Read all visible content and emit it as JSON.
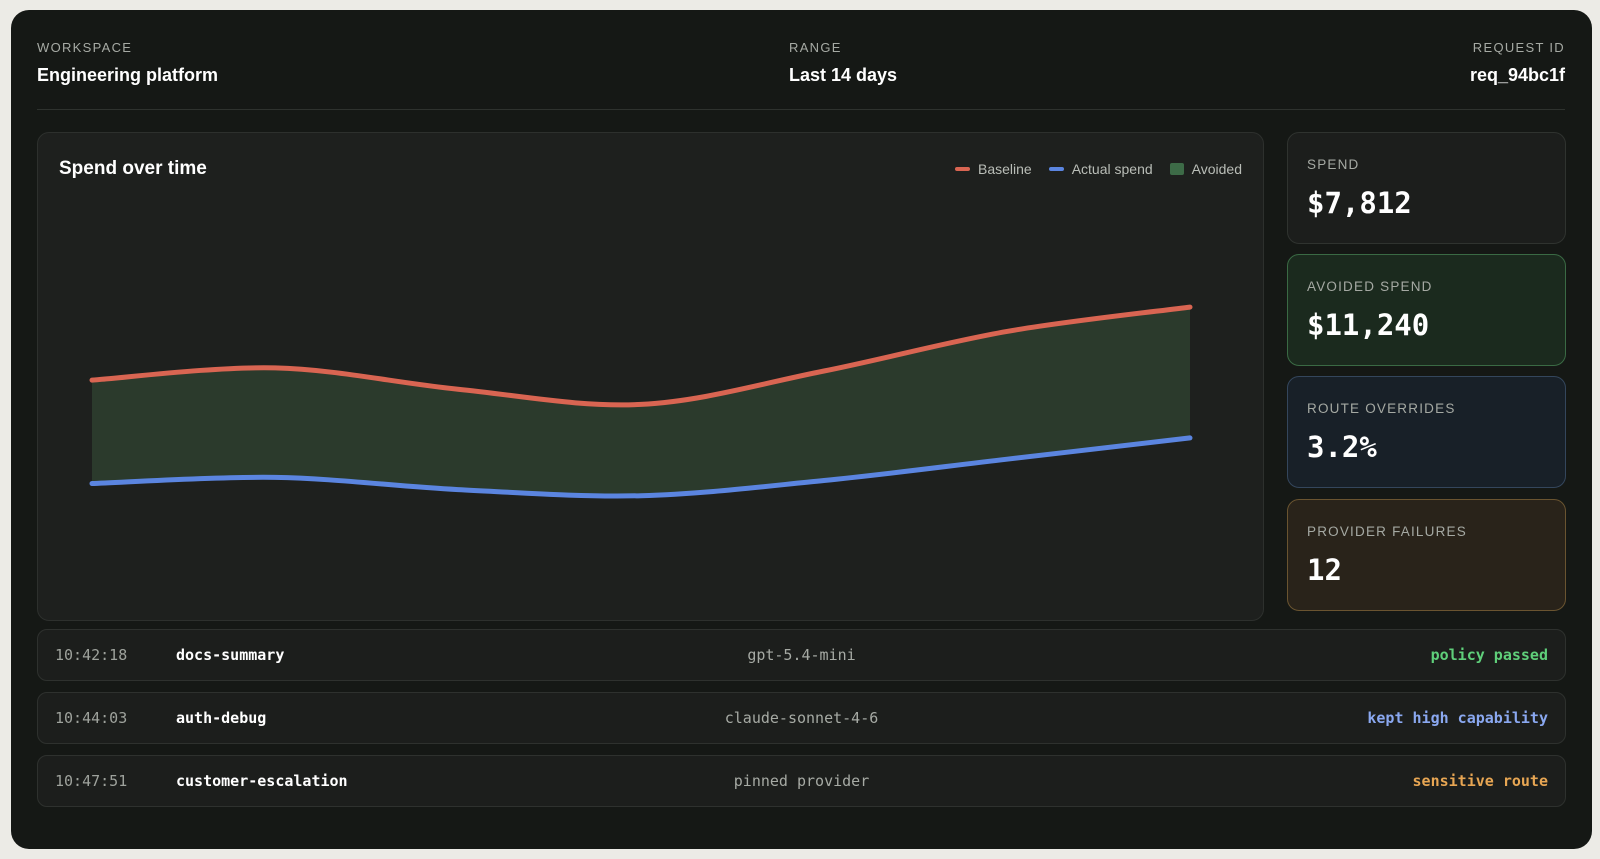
{
  "header": {
    "workspace_label": "WORKSPACE",
    "workspace_value": "Engineering platform",
    "range_label": "RANGE",
    "range_value": "Last 14 days",
    "request_label": "REQUEST ID",
    "request_value": "req_94bc1f"
  },
  "chart": {
    "title": "Spend over time",
    "legend": {
      "baseline": "Baseline",
      "actual": "Actual spend",
      "avoided": "Avoided"
    },
    "colors": {
      "baseline": "#d96552",
      "actual": "#5b85e0",
      "avoided": "#2b3a2c"
    }
  },
  "chart_data": {
    "type": "line",
    "title": "Spend over time",
    "xlabel": "",
    "ylabel": "",
    "grid": false,
    "legend_position": "top-right",
    "x": [
      0,
      1,
      2,
      3,
      4,
      5,
      6
    ],
    "series": [
      {
        "name": "Baseline",
        "values": [
          0.7,
          0.74,
          0.67,
          0.62,
          0.73,
          0.86,
          0.94
        ]
      },
      {
        "name": "Actual spend",
        "values": [
          0.36,
          0.38,
          0.34,
          0.32,
          0.37,
          0.44,
          0.51
        ]
      }
    ],
    "ylim": [
      0,
      1.2
    ]
  },
  "stats": [
    {
      "label": "SPEND",
      "value": "$7,812"
    },
    {
      "label": "AVOIDED SPEND",
      "value": "$11,240"
    },
    {
      "label": "ROUTE OVERRIDES",
      "value": "3.2%"
    },
    {
      "label": "PROVIDER FAILURES",
      "value": "12"
    }
  ],
  "rows": [
    {
      "time": "10:42:18",
      "name": "docs-summary",
      "model": "gpt-5.4-mini",
      "status": "policy passed",
      "status_color": "#5fcf7a"
    },
    {
      "time": "10:44:03",
      "name": "auth-debug",
      "model": "claude-sonnet-4-6",
      "status": "kept high capability",
      "status_color": "#8aa8f0"
    },
    {
      "time": "10:47:51",
      "name": "customer-escalation",
      "model": "pinned provider",
      "status": "sensitive route",
      "status_color": "#e7a653"
    }
  ]
}
